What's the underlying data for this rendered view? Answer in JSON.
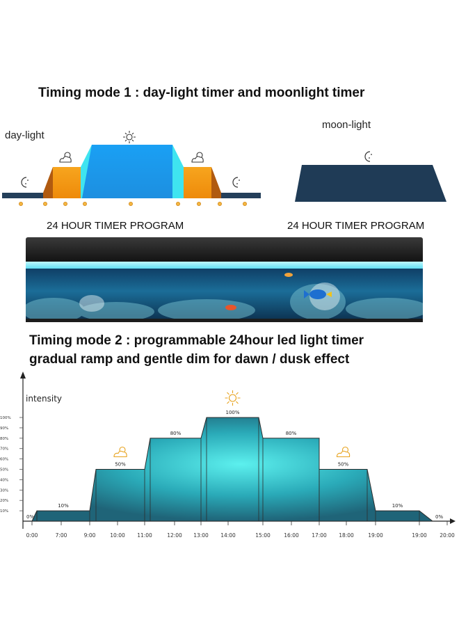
{
  "mode1": {
    "title": "Timing mode 1 : day-light timer and moonlight timer",
    "daylight_label": "day-light",
    "moonlight_label": "moon-light",
    "program_left": "24 HOUR TIMER PROGRAM",
    "program_right": "24 HOUR TIMER PROGRAM",
    "icons": [
      "moon-icon",
      "cloud-sun-icon",
      "sun-icon",
      "cloud-sun-icon",
      "moon-icon"
    ],
    "colors": {
      "moonlight": "#1f3b56",
      "sunrise": "#f39a12",
      "transition": "#3fe4f0",
      "daylight": "#1c9cf0"
    }
  },
  "mode2": {
    "title_line1": "Timing mode 2 : programmable 24hour led light timer",
    "title_line2": "gradual ramp and gentle dim for dawn / dusk effect"
  },
  "chart_data": {
    "type": "area",
    "ylabel": "intensity",
    "yticks": [
      "100%",
      "90%",
      "80%",
      "70%",
      "60%",
      "50%",
      "40%",
      "30%",
      "20%",
      "10%"
    ],
    "xticks": [
      "0:00",
      "7:00",
      "9:00",
      "10:00",
      "11:00",
      "12:00",
      "13:00",
      "14:00",
      "15:00",
      "16:00",
      "17:00",
      "18:00",
      "19:00",
      "19:00",
      "20:00"
    ],
    "segments": [
      {
        "start": "7:00",
        "end": "9:00",
        "value": 10,
        "label": "10%"
      },
      {
        "start": "10:00",
        "end": "11:00",
        "value": 50,
        "label": "50%",
        "icon": "cloud-sun-icon"
      },
      {
        "start": "12:00",
        "end": "13:00",
        "value": 80,
        "label": "80%"
      },
      {
        "start": "14:00",
        "end": "15:00",
        "value": 100,
        "label": "100%",
        "icon": "sun-icon"
      },
      {
        "start": "16:00",
        "end": "17:00",
        "value": 80,
        "label": "80%"
      },
      {
        "start": "18:00",
        "end": "19:00",
        "value": 50,
        "label": "50%",
        "icon": "cloud-sun-icon"
      },
      {
        "start": "19:00",
        "end": "20:00",
        "value": 10,
        "label": "10%"
      }
    ],
    "start_label": "0%",
    "end_label": "0%",
    "ylim": [
      0,
      100
    ],
    "colors": {
      "fill_dark": "#1f6f86",
      "fill_bright": "#3fe0e6",
      "edge": "#333333"
    }
  }
}
